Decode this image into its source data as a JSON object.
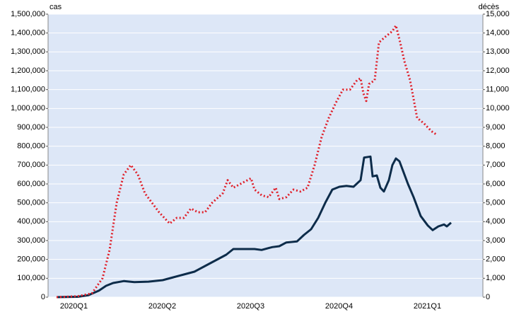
{
  "chart_data": {
    "type": "line",
    "y_label": "cas",
    "y2_label": "décès",
    "xlim": [
      2020.052,
      2021.282
    ],
    "xticks": [
      {
        "value": 2020.125,
        "label": "2020Q1"
      },
      {
        "value": 2020.375,
        "label": "2020Q2"
      },
      {
        "value": 2020.625,
        "label": "2020Q3"
      },
      {
        "value": 2020.875,
        "label": "2020Q4"
      },
      {
        "value": 2021.125,
        "label": "2021Q1"
      }
    ],
    "ylim": [
      0,
      1500000
    ],
    "yticks": [
      0,
      {
        "value": 100000,
        "label": "100,000"
      },
      {
        "value": 200000,
        "label": "200,000"
      },
      {
        "value": 300000,
        "label": "300,000"
      },
      {
        "value": 400000,
        "label": "400,000"
      },
      {
        "value": 500000,
        "label": "500,000"
      },
      {
        "value": 600000,
        "label": "600,000"
      },
      {
        "value": 700000,
        "label": "700,000"
      },
      {
        "value": 800000,
        "label": "800,000"
      },
      {
        "value": 900000,
        "label": "900,000"
      },
      {
        "value": 1000000,
        "label": "1,000,000"
      },
      {
        "value": 1100000,
        "label": "1,100,000"
      },
      {
        "value": 1200000,
        "label": "1,200,000"
      },
      {
        "value": 1300000,
        "label": "1,300,000"
      },
      {
        "value": 1400000,
        "label": "1,400,000"
      },
      {
        "value": 1500000,
        "label": "1,500,000"
      }
    ],
    "y2lim": [
      0,
      15000
    ],
    "y2ticks": [
      0,
      {
        "value": 1000,
        "label": "1,000"
      },
      {
        "value": 2000,
        "label": "2,000"
      },
      {
        "value": 3000,
        "label": "3,000"
      },
      {
        "value": 4000,
        "label": "4,000"
      },
      {
        "value": 5000,
        "label": "5,000"
      },
      {
        "value": 6000,
        "label": "6,000"
      },
      {
        "value": 7000,
        "label": "7,000"
      },
      {
        "value": 8000,
        "label": "8,000"
      },
      {
        "value": 9000,
        "label": "9,000"
      },
      {
        "value": 10000,
        "label": "10,000"
      },
      {
        "value": 11000,
        "label": "11,000"
      },
      {
        "value": 12000,
        "label": "12,000"
      },
      {
        "value": 13000,
        "label": "13,000"
      },
      {
        "value": 14000,
        "label": "14,000"
      },
      {
        "value": 15000,
        "label": "15,000"
      }
    ],
    "grid": true,
    "series": [
      {
        "color": "#0d2c4a",
        "style": "solid",
        "x": [
          2020.076,
          2020.136,
          2020.166,
          2020.196,
          2020.216,
          2020.236,
          2020.266,
          2020.296,
          2020.336,
          2020.376,
          2020.406,
          2020.436,
          2020.466,
          2020.496,
          2020.526,
          2020.556,
          2020.576,
          2020.606,
          2020.636,
          2020.656,
          2020.686,
          2020.706,
          2020.726,
          2020.756,
          2020.776,
          2020.796,
          2020.816,
          2020.836,
          2020.856,
          2020.876,
          2020.896,
          2020.916,
          2020.936,
          2020.946,
          2020.964,
          2020.97,
          2020.982,
          2020.992,
          2021.002,
          2021.016,
          2021.026,
          2021.036,
          2021.046,
          2021.056,
          2021.07,
          2021.086,
          2021.106,
          2021.126,
          2021.14,
          2021.156,
          2021.172,
          2021.18,
          2021.192
        ],
        "values": [
          0,
          2000,
          10000,
          35000,
          60000,
          75000,
          85000,
          80000,
          82000,
          90000,
          105000,
          120000,
          135000,
          165000,
          195000,
          225000,
          255000,
          255000,
          255000,
          250000,
          265000,
          270000,
          290000,
          295000,
          330000,
          360000,
          420000,
          500000,
          570000,
          585000,
          590000,
          585000,
          620000,
          740000,
          745000,
          640000,
          645000,
          580000,
          560000,
          620000,
          700000,
          735000,
          720000,
          670000,
          600000,
          530000,
          430000,
          380000,
          355000,
          375000,
          385000,
          375000,
          395000
        ]
      },
      {
        "color": "#e0202a",
        "style": "dotted",
        "axis": "y2",
        "x": [
          2020.076,
          2020.136,
          2020.176,
          2020.206,
          2020.226,
          2020.246,
          2020.266,
          2020.286,
          2020.306,
          2020.326,
          2020.346,
          2020.366,
          2020.396,
          2020.416,
          2020.436,
          2020.456,
          2020.476,
          2020.496,
          2020.516,
          2020.546,
          2020.56,
          2020.576,
          2020.596,
          2020.616,
          2020.626,
          2020.636,
          2020.656,
          2020.676,
          2020.696,
          2020.706,
          2020.726,
          2020.746,
          2020.766,
          2020.786,
          2020.806,
          2020.826,
          2020.846,
          2020.866,
          2020.886,
          2020.906,
          2020.926,
          2020.936,
          2020.944,
          2020.952,
          2020.96,
          2020.976,
          2020.988,
          2021.006,
          2021.026,
          2021.036,
          2021.048,
          2021.06,
          2021.076,
          2021.096,
          2021.116,
          2021.136,
          2021.152
        ],
        "values": [
          0,
          50,
          200,
          1000,
          2500,
          5000,
          6500,
          7000,
          6500,
          5500,
          5000,
          4500,
          3900,
          4200,
          4200,
          4700,
          4500,
          4500,
          5000,
          5500,
          6200,
          5800,
          6000,
          6200,
          6300,
          5700,
          5400,
          5300,
          5800,
          5200,
          5300,
          5700,
          5600,
          5800,
          7000,
          8500,
          9500,
          10300,
          11000,
          11000,
          11500,
          11600,
          10800,
          10400,
          11300,
          11500,
          13500,
          13800,
          14100,
          14400,
          13500,
          12500,
          11500,
          9500,
          9200,
          8800,
          8600
        ]
      }
    ]
  }
}
